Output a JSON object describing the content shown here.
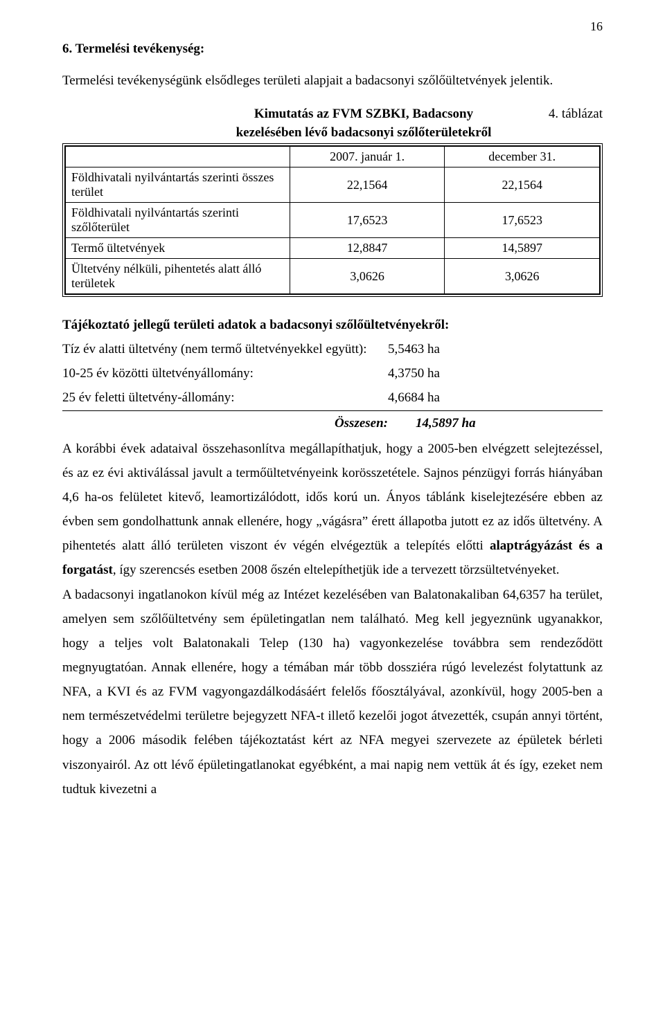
{
  "page_number": "16",
  "heading": "6. Termelési tevékenység:",
  "intro": "Termelési tevékenységünk elsődleges területi alapjait a badacsonyi szőlőültetvények jelentik.",
  "table_caption_top": "Kimutatás az FVM SZBKI, Badacsony",
  "table_caption_bottom": "kezelésében lévő badacsonyi szőlőterületekről",
  "table_number": "4. táblázat",
  "table": {
    "header": [
      "",
      "2007. január 1.",
      "december 31."
    ],
    "rows": [
      {
        "label": "Földhivatali nyilvántartás szerinti összes terület",
        "c1": "22,1564",
        "c2": "22,1564"
      },
      {
        "label": "Földhivatali nyilvántartás szerinti szőlőterület",
        "c1": "17,6523",
        "c2": "17,6523"
      },
      {
        "label": "Termő ültetvények",
        "c1": "12,8847",
        "c2": "14,5897"
      },
      {
        "label": "Ültetvény nélküli, pihentetés alatt álló területek",
        "c1": "3,0626",
        "c2": "3,0626"
      }
    ]
  },
  "sub_heading": "Tájékoztató jellegű területi adatok a badacsonyi szőlőültetvényekről:",
  "data_lines": [
    {
      "label": "Tíz év alatti ültetvény (nem termő ültetvényekkel együtt):",
      "value": "5,5463 ha",
      "underline": false
    },
    {
      "label": "10-25 év közötti ültetvényállomány:",
      "value": "4,3750 ha",
      "underline": false
    },
    {
      "label": "25 év feletti ültetvény-állomány:",
      "value": "4,6684 ha",
      "underline": true
    }
  ],
  "sum": {
    "label": "Összesen:",
    "value": "14,5897 ha"
  },
  "body": {
    "p1a": "A korábbi évek adataival összehasonlítva megállapíthatjuk, hogy a 2005-ben elvégzett selejtezéssel, és az ez évi aktiválással javult a termőültetvényeink korösszetétele. Sajnos pénzügyi forrás hiányában 4,6 ha-os felületet kitevő, leamortizálódott, idős korú un. Ányos táblánk kiselejtezésére ebben az évben sem gondolhattunk annak ellenére, hogy „vágásra” érett állapotba jutott ez az idős ültetvény. A pihentetés alatt álló területen viszont év végén elvégeztük a telepítés előtti ",
    "p1bold": "alaptrágyázást és a forgatást",
    "p1b": ", így szerencsés esetben 2008 őszén eltelepíthetjük ide a tervezett törzsültetvényeket.",
    "p2": "A badacsonyi ingatlanokon kívül még az Intézet kezelésében van Balatonakaliban 64,6357 ha terület, amelyen sem szőlőültetvény sem épületingatlan nem található. Meg kell jegyeznünk ugyanakkor, hogy a teljes volt Balatonakali Telep (130 ha) vagyonkezelése továbbra sem rendeződött megnyugtatóan. Annak ellenére, hogy a témában már több dossziéra rúgó levelezést folytattunk az NFA, a KVI és az FVM vagyongazdálkodásáért felelős főosztályával, azonkívül, hogy 2005-ben a nem természetvédelmi területre bejegyzett NFA-t illető kezelői jogot átvezették, csupán annyi történt, hogy a 2006 második felében tájékoztatást kért az NFA megyei szervezete az épületek bérleti viszonyairól. Az ott lévő épületingatlanokat egyébként, a mai napig nem vettük át és így, ezeket nem tudtuk kivezetni a"
  }
}
